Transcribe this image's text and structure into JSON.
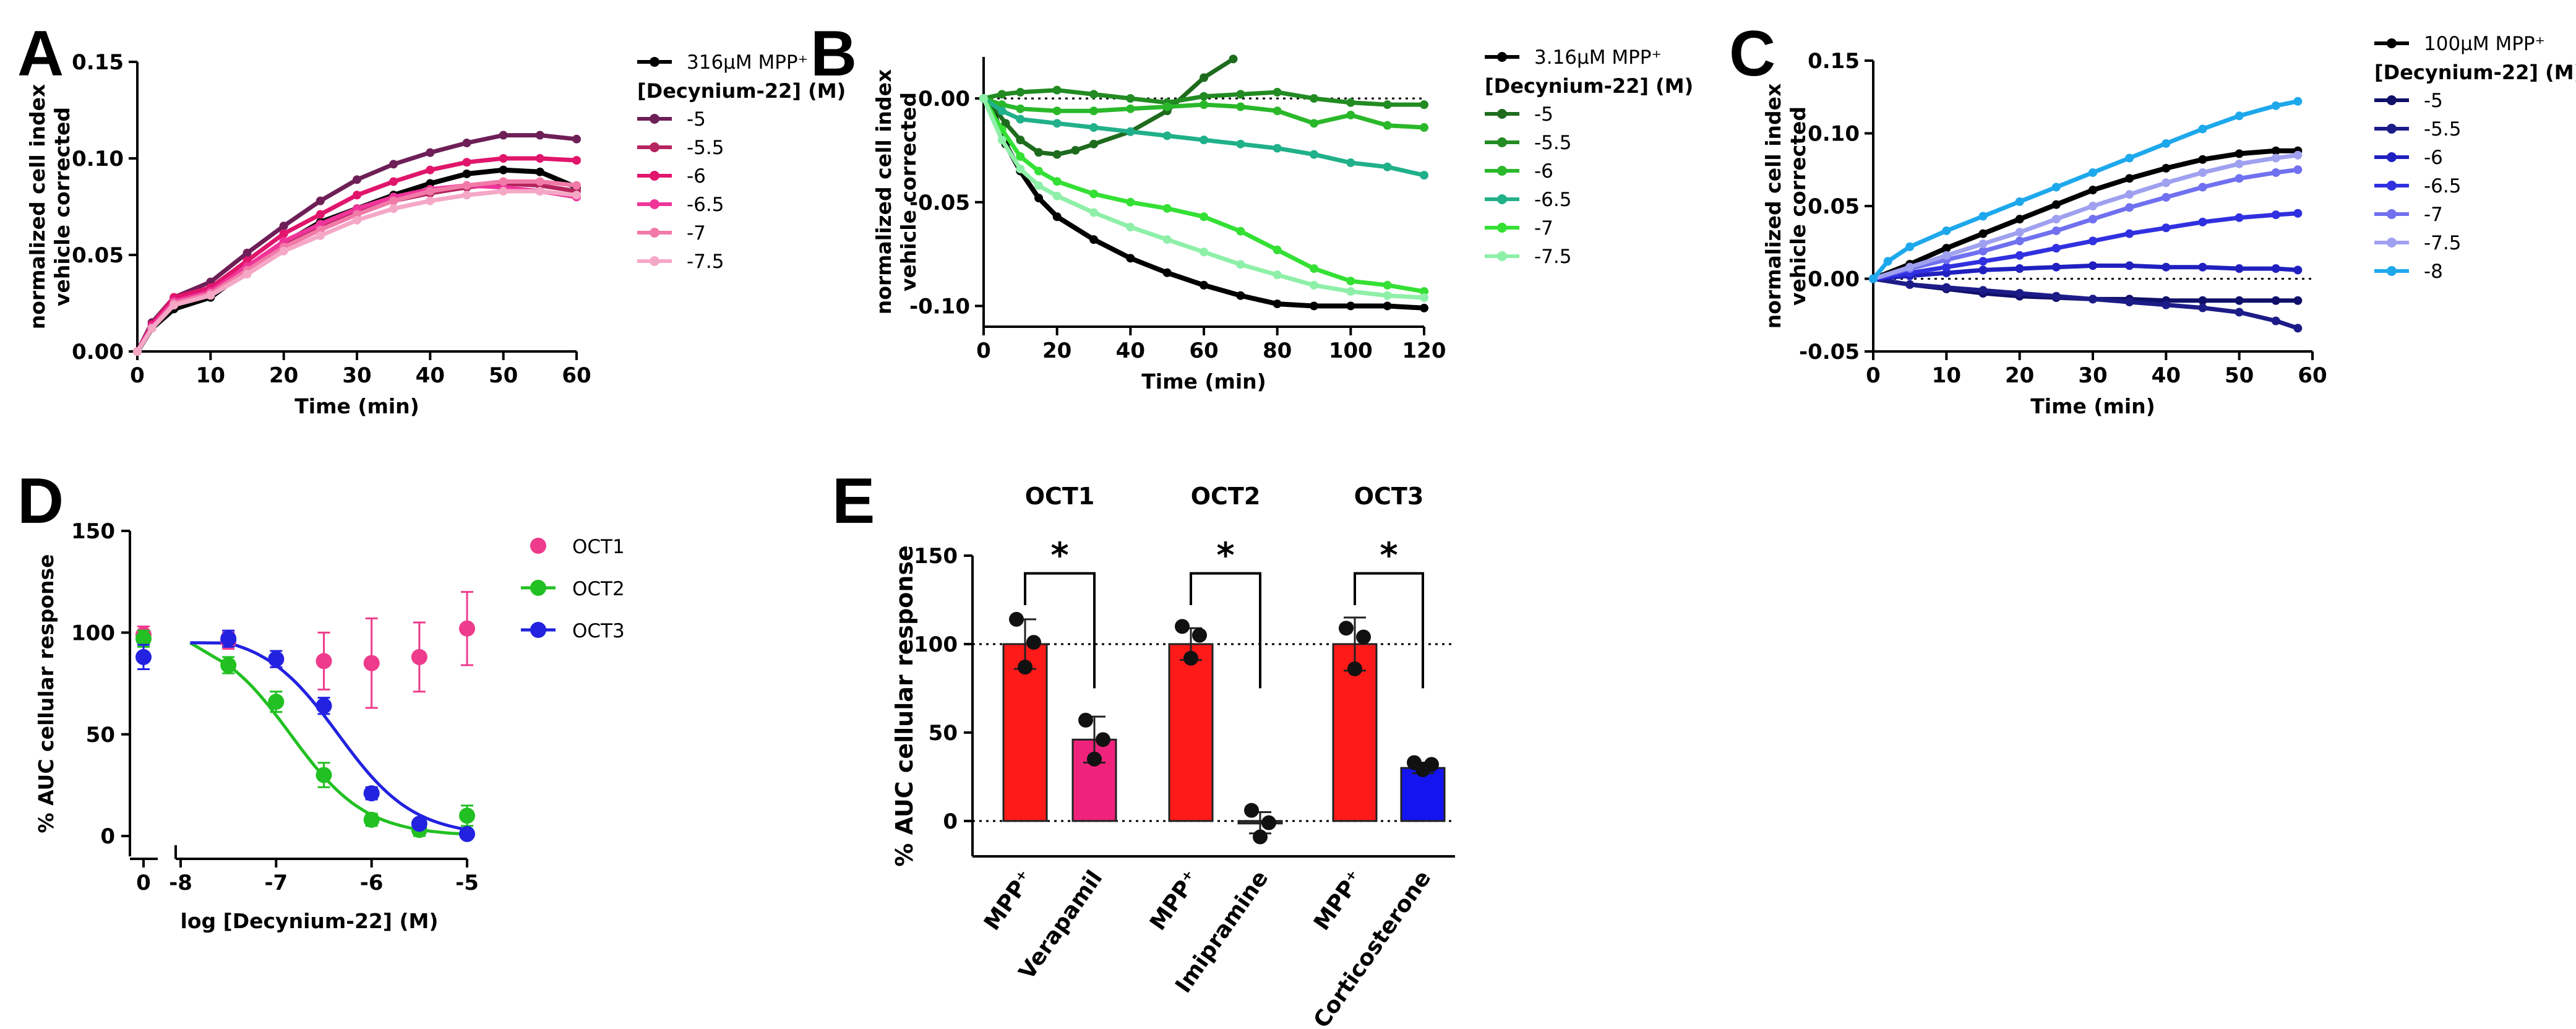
{
  "chart_data": [
    {
      "panel": "A",
      "type": "line",
      "ylabel": "normalized cell index vehicle corrected",
      "xlabel": "Time (min)",
      "xlim": [
        0,
        60
      ],
      "ylim": [
        0,
        0.15
      ],
      "xticks": [
        "0",
        "10",
        "20",
        "30",
        "40",
        "50",
        "60"
      ],
      "yticks": [
        "0.00",
        "0.05",
        "0.10",
        "0.15"
      ],
      "legend_ref": "316µM MPP⁺",
      "legend_title": "[Decynium-22] (M)",
      "series": [
        {
          "name": "316µM MPP⁺",
          "color": "#000000",
          "x": [
            0,
            2,
            5,
            10,
            15,
            20,
            25,
            30,
            35,
            40,
            45,
            50,
            55,
            60
          ],
          "y": [
            0,
            0.012,
            0.022,
            0.028,
            0.042,
            0.056,
            0.067,
            0.074,
            0.081,
            0.087,
            0.092,
            0.094,
            0.093,
            0.085
          ]
        },
        {
          "name": "-5",
          "color": "#6e1f57",
          "x": [
            0,
            2,
            5,
            10,
            15,
            20,
            25,
            30,
            35,
            40,
            45,
            50,
            55,
            60
          ],
          "y": [
            0,
            0.015,
            0.028,
            0.036,
            0.051,
            0.065,
            0.078,
            0.089,
            0.097,
            0.103,
            0.108,
            0.112,
            0.112,
            0.11
          ]
        },
        {
          "name": "-5.5",
          "color": "#b5245e",
          "x": [
            0,
            2,
            5,
            10,
            15,
            20,
            25,
            30,
            35,
            40,
            45,
            50,
            55,
            60
          ],
          "y": [
            0,
            0.013,
            0.026,
            0.031,
            0.043,
            0.056,
            0.064,
            0.072,
            0.078,
            0.082,
            0.085,
            0.087,
            0.086,
            0.083
          ]
        },
        {
          "name": "-6",
          "color": "#e0156b",
          "x": [
            0,
            2,
            5,
            10,
            15,
            20,
            25,
            30,
            35,
            40,
            45,
            50,
            55,
            60
          ],
          "y": [
            0,
            0.014,
            0.028,
            0.033,
            0.047,
            0.061,
            0.071,
            0.081,
            0.088,
            0.094,
            0.098,
            0.1,
            0.1,
            0.099
          ]
        },
        {
          "name": "-6.5",
          "color": "#f0359a",
          "x": [
            0,
            2,
            5,
            10,
            15,
            20,
            25,
            30,
            35,
            40,
            45,
            50,
            55,
            60
          ],
          "y": [
            0,
            0.013,
            0.026,
            0.031,
            0.044,
            0.057,
            0.066,
            0.074,
            0.08,
            0.084,
            0.086,
            0.085,
            0.083,
            0.08
          ]
        },
        {
          "name": "-7",
          "color": "#f27aa8",
          "x": [
            0,
            2,
            5,
            10,
            15,
            20,
            25,
            30,
            35,
            40,
            45,
            50,
            55,
            60
          ],
          "y": [
            0,
            0.012,
            0.025,
            0.03,
            0.042,
            0.054,
            0.063,
            0.071,
            0.078,
            0.083,
            0.086,
            0.088,
            0.088,
            0.086
          ]
        },
        {
          "name": "-7.5",
          "color": "#f5a8c6",
          "x": [
            0,
            2,
            5,
            10,
            15,
            20,
            25,
            30,
            35,
            40,
            45,
            50,
            55,
            60
          ],
          "y": [
            0,
            0.012,
            0.024,
            0.029,
            0.04,
            0.052,
            0.06,
            0.068,
            0.074,
            0.078,
            0.081,
            0.083,
            0.083,
            0.081
          ]
        }
      ]
    },
    {
      "panel": "B",
      "type": "line",
      "ylabel": "normalized cell index vehicle corrected",
      "xlabel": "Time (min)",
      "xlim": [
        0,
        120
      ],
      "ylim": [
        -0.11,
        0.02
      ],
      "xticks": [
        "0",
        "20",
        "40",
        "60",
        "80",
        "100",
        "120"
      ],
      "yticks": [
        "-0.10",
        "-0.05",
        "0.00"
      ],
      "legend_ref": "3.16µM MPP⁺",
      "legend_title": "[Decynium-22] (M)",
      "series": [
        {
          "name": "3.16µM MPP⁺",
          "color": "#000000",
          "x": [
            0,
            3,
            6,
            10,
            15,
            20,
            30,
            40,
            50,
            60,
            70,
            80,
            90,
            100,
            110,
            120
          ],
          "y": [
            0,
            -0.008,
            -0.022,
            -0.035,
            -0.048,
            -0.057,
            -0.068,
            -0.077,
            -0.084,
            -0.09,
            -0.095,
            -0.099,
            -0.1,
            -0.1,
            -0.1,
            -0.101
          ]
        },
        {
          "name": "-5",
          "color": "#1e6b1e",
          "x": [
            0,
            3,
            6,
            10,
            15,
            20,
            25,
            30,
            40,
            50,
            60,
            68
          ],
          "y": [
            0,
            -0.005,
            -0.012,
            -0.02,
            -0.026,
            -0.027,
            -0.025,
            -0.022,
            -0.016,
            -0.006,
            0.01,
            0.019
          ]
        },
        {
          "name": "-5.5",
          "color": "#228b22",
          "x": [
            0,
            5,
            10,
            20,
            30,
            40,
            50,
            60,
            70,
            80,
            90,
            100,
            110,
            120
          ],
          "y": [
            0,
            0.002,
            0.003,
            0.004,
            0.002,
            0.0,
            -0.002,
            0.001,
            0.002,
            0.003,
            0.0,
            -0.002,
            -0.003,
            -0.003
          ]
        },
        {
          "name": "-6",
          "color": "#2ab82a",
          "x": [
            0,
            5,
            10,
            20,
            30,
            40,
            50,
            60,
            70,
            80,
            90,
            100,
            110,
            120
          ],
          "y": [
            0,
            -0.003,
            -0.005,
            -0.006,
            -0.006,
            -0.005,
            -0.004,
            -0.003,
            -0.004,
            -0.006,
            -0.012,
            -0.008,
            -0.013,
            -0.014
          ]
        },
        {
          "name": "-6.5",
          "color": "#20b08a",
          "x": [
            0,
            5,
            10,
            20,
            30,
            40,
            50,
            60,
            70,
            80,
            90,
            100,
            110,
            120
          ],
          "y": [
            0,
            -0.006,
            -0.01,
            -0.012,
            -0.014,
            -0.016,
            -0.018,
            -0.02,
            -0.022,
            -0.024,
            -0.027,
            -0.031,
            -0.033,
            -0.037
          ]
        },
        {
          "name": "-7",
          "color": "#34e034",
          "x": [
            0,
            5,
            10,
            15,
            20,
            30,
            40,
            50,
            60,
            70,
            80,
            90,
            100,
            110,
            120
          ],
          "y": [
            0,
            -0.015,
            -0.028,
            -0.035,
            -0.04,
            -0.046,
            -0.05,
            -0.053,
            -0.057,
            -0.064,
            -0.073,
            -0.082,
            -0.088,
            -0.09,
            -0.093
          ]
        },
        {
          "name": "-7.5",
          "color": "#8ef0a8",
          "x": [
            0,
            5,
            10,
            15,
            20,
            30,
            40,
            50,
            60,
            70,
            80,
            90,
            100,
            110,
            120
          ],
          "y": [
            0,
            -0.02,
            -0.034,
            -0.042,
            -0.047,
            -0.055,
            -0.062,
            -0.068,
            -0.074,
            -0.08,
            -0.085,
            -0.09,
            -0.093,
            -0.095,
            -0.096
          ]
        }
      ]
    },
    {
      "panel": "C",
      "type": "line",
      "ylabel": "normalized cell index vehicle corrected",
      "xlabel": "Time (min)",
      "xlim": [
        0,
        60
      ],
      "ylim": [
        -0.05,
        0.15
      ],
      "xticks": [
        "0",
        "10",
        "20",
        "30",
        "40",
        "50",
        "60"
      ],
      "yticks": [
        "-0.05",
        "0.00",
        "0.05",
        "0.10",
        "0.15"
      ],
      "legend_ref": "100µM MPP⁺",
      "legend_title": "[Decynium-22] (M)",
      "series": [
        {
          "name": "100µM MPP⁺",
          "color": "#000000",
          "x": [
            0,
            5,
            10,
            15,
            20,
            25,
            30,
            35,
            40,
            45,
            50,
            55,
            58
          ],
          "y": [
            0,
            0.01,
            0.021,
            0.031,
            0.041,
            0.051,
            0.061,
            0.069,
            0.076,
            0.082,
            0.086,
            0.088,
            0.088
          ]
        },
        {
          "name": "-5",
          "color": "#10106a",
          "x": [
            0,
            5,
            10,
            15,
            20,
            25,
            30,
            35,
            40,
            45,
            50,
            55,
            58
          ],
          "y": [
            0,
            -0.004,
            -0.007,
            -0.01,
            -0.012,
            -0.013,
            -0.014,
            -0.014,
            -0.015,
            -0.015,
            -0.015,
            -0.015,
            -0.015
          ]
        },
        {
          "name": "-5.5",
          "color": "#1c1c88",
          "x": [
            0,
            5,
            10,
            15,
            20,
            25,
            30,
            35,
            40,
            45,
            50,
            55,
            58
          ],
          "y": [
            0,
            -0.004,
            -0.006,
            -0.008,
            -0.01,
            -0.012,
            -0.014,
            -0.016,
            -0.018,
            -0.02,
            -0.023,
            -0.029,
            -0.034
          ]
        },
        {
          "name": "-6",
          "color": "#2020c0",
          "x": [
            0,
            5,
            10,
            15,
            20,
            25,
            30,
            35,
            40,
            45,
            50,
            55,
            58
          ],
          "y": [
            0,
            0.002,
            0.004,
            0.006,
            0.007,
            0.008,
            0.009,
            0.009,
            0.008,
            0.008,
            0.007,
            0.007,
            0.006
          ]
        },
        {
          "name": "-6.5",
          "color": "#3030e0",
          "x": [
            0,
            5,
            10,
            15,
            20,
            25,
            30,
            35,
            40,
            45,
            50,
            55,
            58
          ],
          "y": [
            0,
            0.004,
            0.008,
            0.012,
            0.016,
            0.021,
            0.026,
            0.031,
            0.035,
            0.039,
            0.042,
            0.044,
            0.045
          ]
        },
        {
          "name": "-7",
          "color": "#7070f0",
          "x": [
            0,
            5,
            10,
            15,
            20,
            25,
            30,
            35,
            40,
            45,
            50,
            55,
            58
          ],
          "y": [
            0,
            0.007,
            0.013,
            0.019,
            0.026,
            0.033,
            0.041,
            0.049,
            0.056,
            0.063,
            0.069,
            0.073,
            0.075
          ]
        },
        {
          "name": "-7.5",
          "color": "#a0a0f0",
          "x": [
            0,
            5,
            10,
            15,
            20,
            25,
            30,
            35,
            40,
            45,
            50,
            55,
            58
          ],
          "y": [
            0,
            0.008,
            0.016,
            0.024,
            0.032,
            0.041,
            0.05,
            0.058,
            0.066,
            0.073,
            0.079,
            0.083,
            0.085
          ]
        },
        {
          "name": "-8",
          "color": "#1ea8ec",
          "x": [
            0,
            2,
            5,
            10,
            15,
            20,
            25,
            30,
            35,
            40,
            45,
            50,
            55,
            58
          ],
          "y": [
            0,
            0.012,
            0.022,
            0.033,
            0.043,
            0.053,
            0.063,
            0.073,
            0.083,
            0.093,
            0.103,
            0.112,
            0.119,
            0.122
          ]
        }
      ]
    },
    {
      "panel": "D",
      "type": "scatter",
      "ylabel": "% AUC cellular response",
      "xlabel": "log [Decynium-22] (M)",
      "xlim": [
        -8,
        -5
      ],
      "ylim": [
        -10,
        150
      ],
      "xticks": [
        "0",
        "-8",
        "-7",
        "-6",
        "-5"
      ],
      "yticks": [
        "0",
        "50",
        "100",
        "150"
      ],
      "series": [
        {
          "name": "OCT1",
          "color": "#ef3b8c",
          "zero_point": {
            "y": 99,
            "err": 4
          },
          "x": [
            -7.5,
            -7,
            -6.5,
            -6,
            -5.5,
            -5
          ],
          "y": [
            96,
            87,
            86,
            85,
            88,
            102
          ],
          "err": [
            4,
            4,
            14,
            22,
            17,
            18
          ]
        },
        {
          "name": "OCT2",
          "color": "#22c022",
          "zero_point": {
            "y": 97,
            "err": 4
          },
          "x": [
            -7.5,
            -7,
            -6.5,
            -6,
            -5.5,
            -5
          ],
          "y": [
            84,
            66,
            30,
            8,
            3,
            10
          ],
          "err": [
            4,
            5,
            6,
            3,
            3,
            5
          ]
        },
        {
          "name": "OCT3",
          "color": "#2222e0",
          "zero_point": {
            "y": 88,
            "err": 6
          },
          "x": [
            -7.5,
            -7,
            -6.5,
            -6,
            -5.5,
            -5
          ],
          "y": [
            97,
            87,
            64,
            21,
            6,
            1
          ],
          "err": [
            4,
            4,
            4,
            3,
            2,
            2
          ]
        }
      ],
      "fits": [
        {
          "name": "OCT2",
          "ic50_log": -6.85,
          "hill": 1.1
        },
        {
          "name": "OCT3",
          "ic50_log": -6.35,
          "hill": 1.1
        }
      ]
    },
    {
      "panel": "E",
      "type": "bar",
      "ylabel": "% AUC cellular response",
      "ylim": [
        -20,
        150
      ],
      "yticks": [
        "0",
        "50",
        "100",
        "150"
      ],
      "groups": [
        "OCT1",
        "OCT2",
        "OCT3"
      ],
      "significance": [
        "*",
        "*",
        "*"
      ],
      "categories": [
        "MPP⁺",
        "Verapamil",
        "MPP⁺",
        "Imipramine",
        "MPP⁺",
        "Corticosterone"
      ],
      "values": [
        100,
        46,
        100,
        -1,
        100,
        30
      ],
      "errors": [
        14,
        13,
        9,
        6,
        15,
        3
      ],
      "colors": [
        "#ff1a1a",
        "#f0237c",
        "#ff1a1a",
        "#333333",
        "#ff1a1a",
        "#1414f0"
      ],
      "points": [
        [
          114,
          101,
          87
        ],
        [
          57,
          46,
          35
        ],
        [
          110,
          105,
          92
        ],
        [
          6,
          -1,
          -9
        ],
        [
          109,
          104,
          86
        ],
        [
          33,
          32,
          29
        ]
      ]
    }
  ]
}
